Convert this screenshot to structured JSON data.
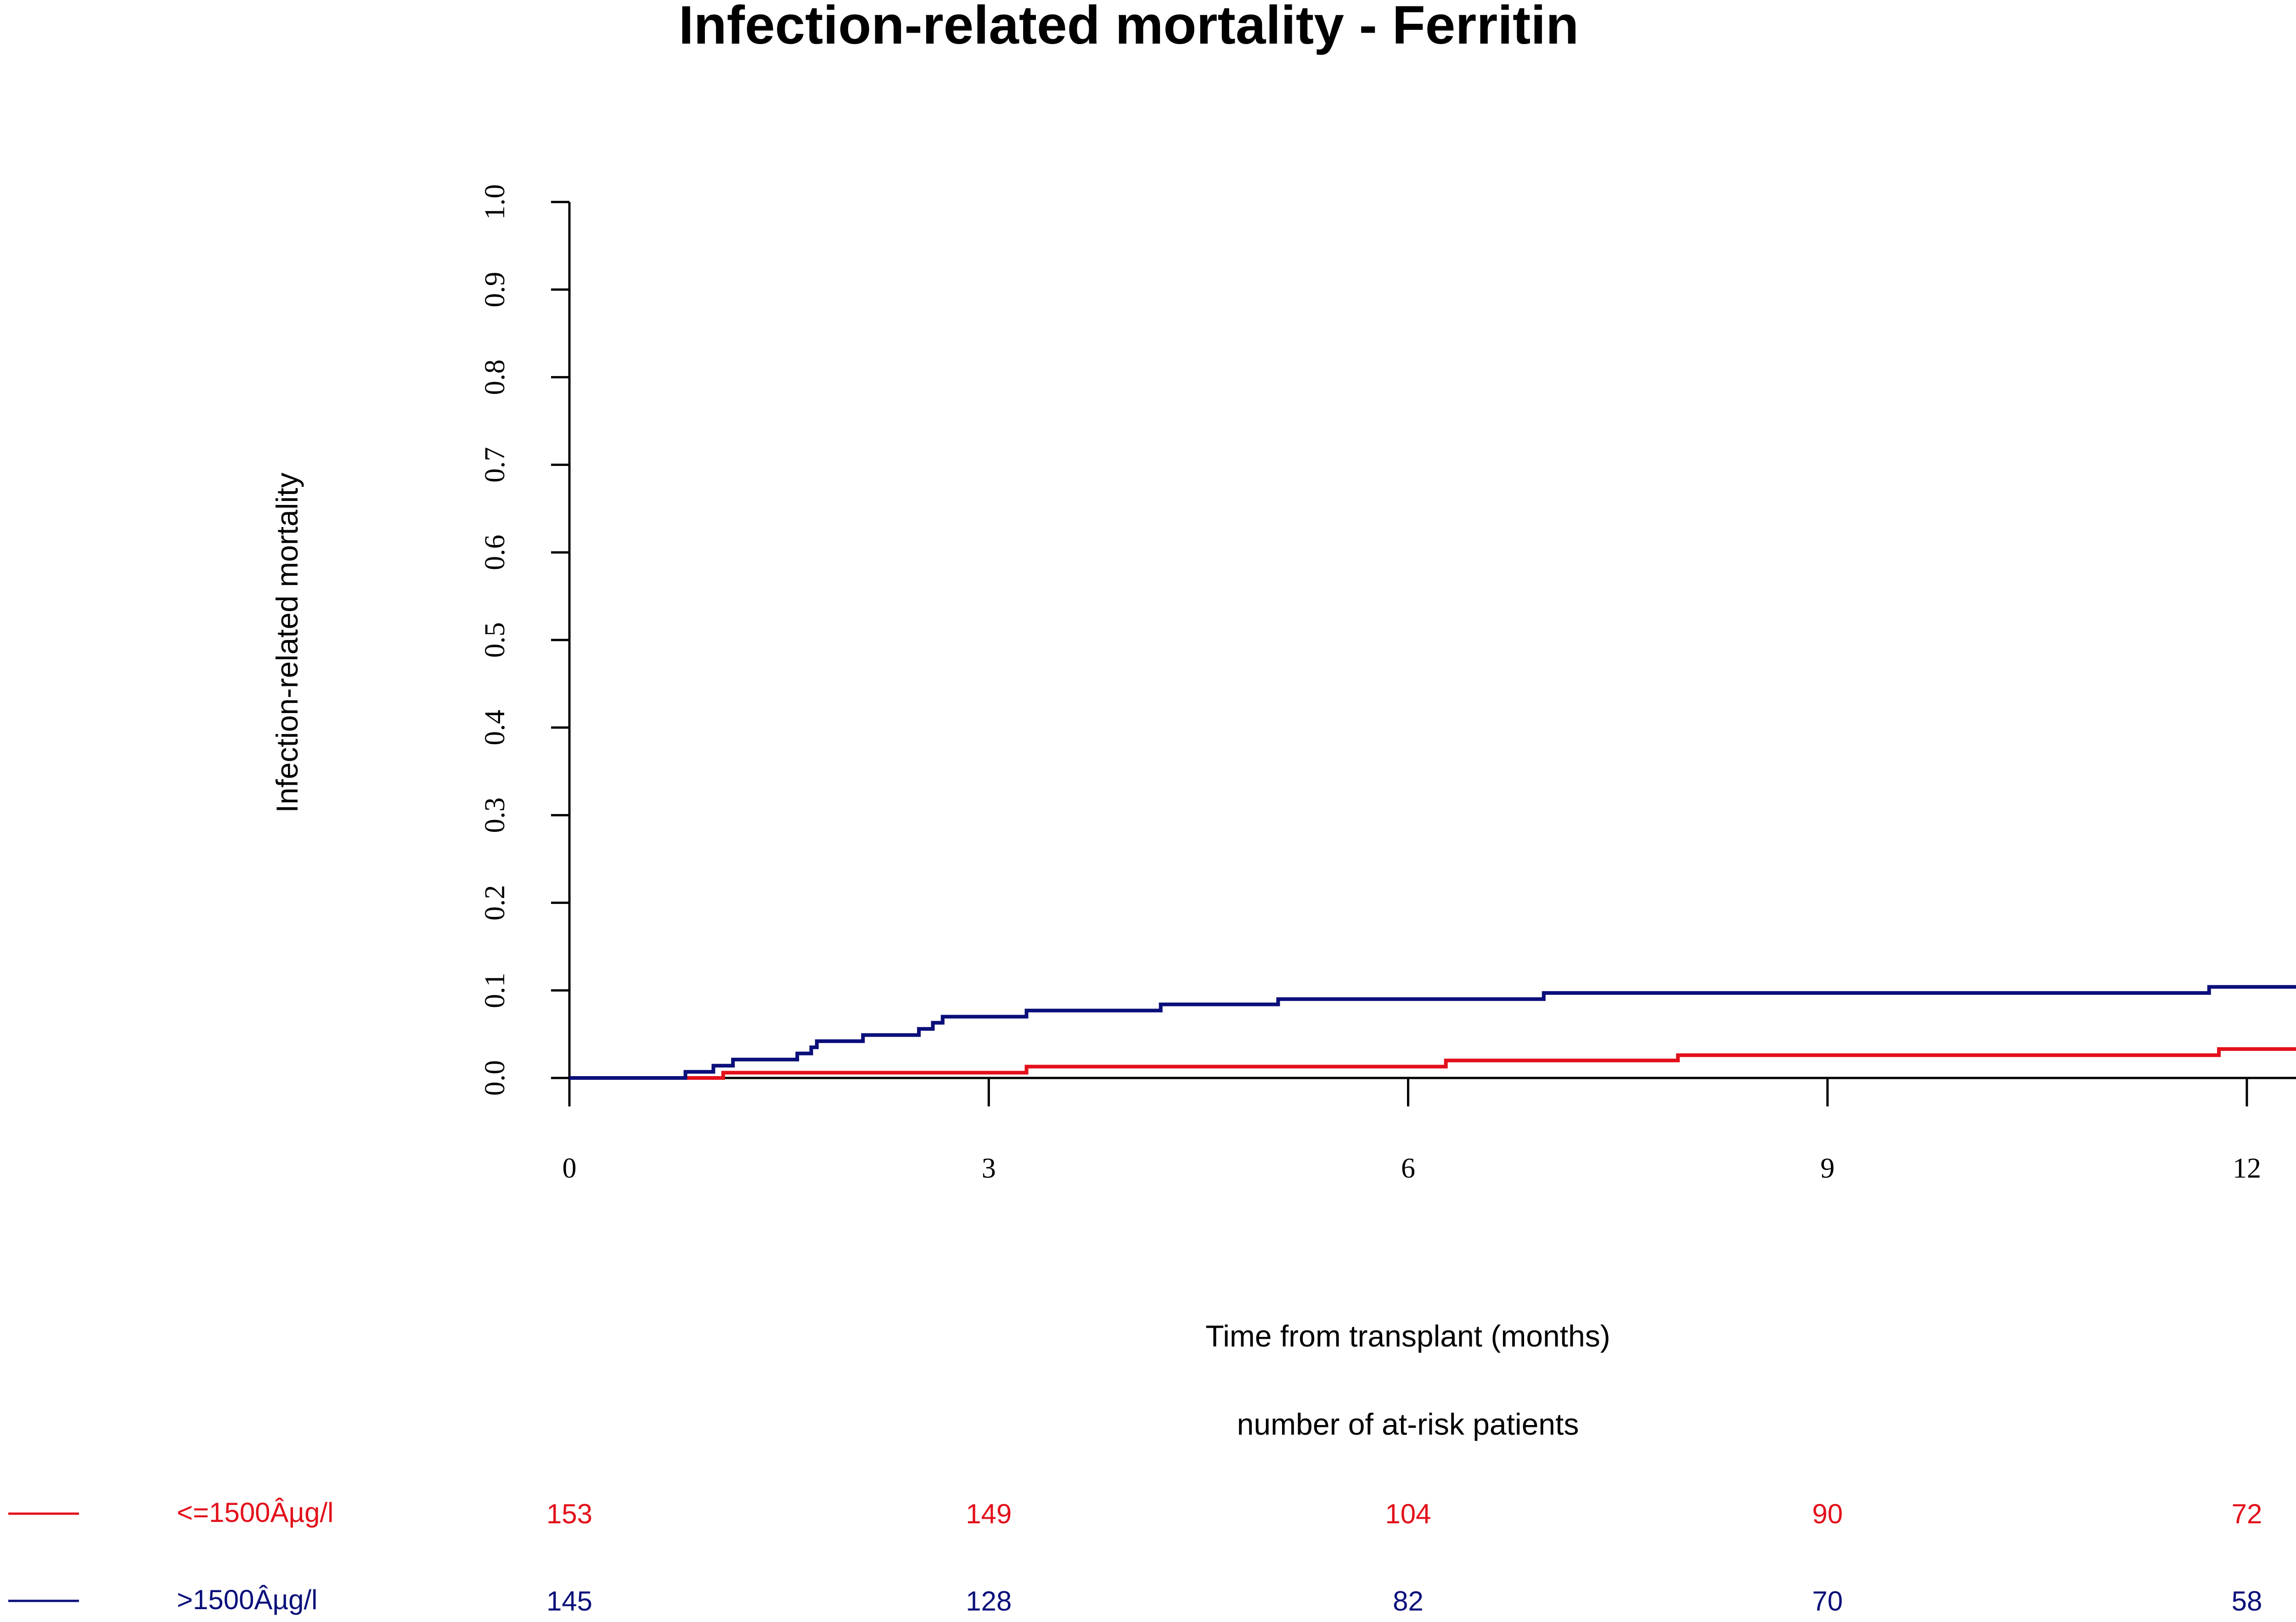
{
  "chart_data": {
    "type": "line",
    "title": "Infection-related mortality - Ferritin",
    "xlabel": "Time from transplant (months)",
    "ylabel": "Infection-related mortality",
    "xlim": [
      0,
      12.65
    ],
    "ylim": [
      0,
      1
    ],
    "x_ticks": [
      "0",
      "3",
      "6",
      "9",
      "12"
    ],
    "x_tick_values": [
      0,
      3,
      6,
      9,
      12
    ],
    "y_ticks": [
      "0.0",
      "0.1",
      "0.2",
      "0.3",
      "0.4",
      "0.5",
      "0.6",
      "0.7",
      "0.8",
      "0.9",
      "1.0"
    ],
    "y_tick_values": [
      0,
      0.1,
      0.2,
      0.3,
      0.4,
      0.5,
      0.6,
      0.7,
      0.8,
      0.9,
      1.0
    ],
    "series": [
      {
        "name": "<=1500Âµg/l",
        "color": "#e3101a",
        "steps": [
          [
            0,
            0
          ],
          [
            0.83,
            0
          ],
          [
            1.1,
            0.006
          ],
          [
            3.27,
            0.013
          ],
          [
            6.27,
            0.02
          ],
          [
            7.93,
            0.026
          ],
          [
            11.8,
            0.033
          ],
          [
            12.65,
            0.033
          ]
        ]
      },
      {
        "name": ">1500Âµg/l",
        "color": "#0a0f7a",
        "steps": [
          [
            0,
            0
          ],
          [
            0.83,
            0.007
          ],
          [
            1.03,
            0.014
          ],
          [
            1.17,
            0.021
          ],
          [
            1.63,
            0.028
          ],
          [
            1.73,
            0.035
          ],
          [
            1.77,
            0.042
          ],
          [
            2.1,
            0.049
          ],
          [
            2.5,
            0.056
          ],
          [
            2.6,
            0.063
          ],
          [
            2.67,
            0.07
          ],
          [
            3.27,
            0.077
          ],
          [
            4.23,
            0.084
          ],
          [
            5.07,
            0.09
          ],
          [
            6.97,
            0.097
          ],
          [
            11.73,
            0.104
          ],
          [
            12.65,
            0.104
          ]
        ]
      }
    ],
    "at_risk": {
      "title": "number of at-risk patients",
      "times": [
        0,
        3,
        6,
        9,
        12
      ],
      "rows": [
        {
          "label": "<=1500Âµg/l",
          "color": "#e3101a",
          "counts": [
            "153",
            "149",
            "104",
            "90",
            "72"
          ]
        },
        {
          "label": ">1500Âµg/l",
          "color": "#0a0f7a",
          "counts": [
            "145",
            "128",
            "82",
            "70",
            "58"
          ]
        }
      ]
    }
  }
}
